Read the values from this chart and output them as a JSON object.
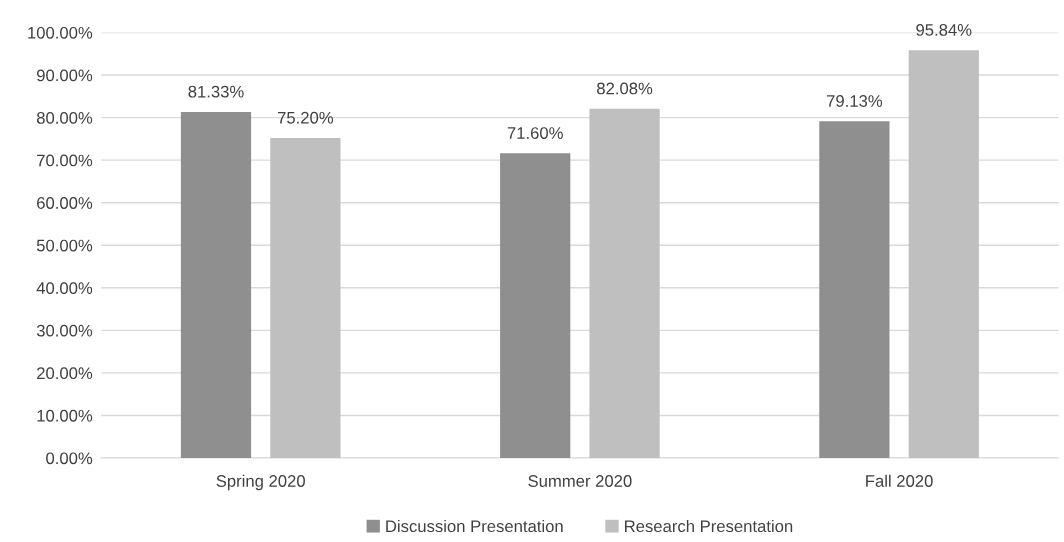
{
  "chart_data": {
    "type": "bar",
    "categories": [
      "Spring 2020",
      "Summer 2020",
      "Fall 2020"
    ],
    "series": [
      {
        "name": "Discussion Presentation",
        "color": "#8f8f8f",
        "values": [
          81.33,
          71.6,
          79.13
        ],
        "value_labels": [
          "81.33%",
          "71.60%",
          "79.13%"
        ]
      },
      {
        "name": "Research Presentation",
        "color": "#bfbfbf",
        "values": [
          75.2,
          82.08,
          95.84
        ],
        "value_labels": [
          "75.20%",
          "82.08%",
          "95.84%"
        ]
      }
    ],
    "ylim": [
      0,
      100
    ],
    "yticks": [
      {
        "value": 0,
        "label": "0.00%"
      },
      {
        "value": 10,
        "label": "10.00%"
      },
      {
        "value": 20,
        "label": "20.00%"
      },
      {
        "value": 30,
        "label": "30.00%"
      },
      {
        "value": 40,
        "label": "40.00%"
      },
      {
        "value": 50,
        "label": "50.00%"
      },
      {
        "value": 60,
        "label": "60.00%"
      },
      {
        "value": 70,
        "label": "70.00%"
      },
      {
        "value": 80,
        "label": "80.00%"
      },
      {
        "value": 90,
        "label": "90.00%"
      },
      {
        "value": 100,
        "label": "100.00%"
      }
    ],
    "grid": "y",
    "legend": "bottom"
  }
}
